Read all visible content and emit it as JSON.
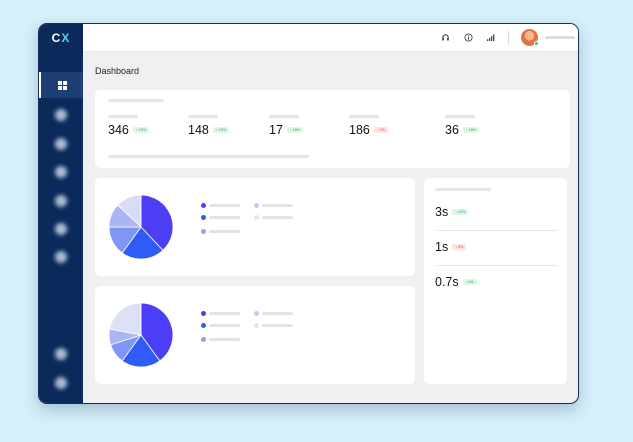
{
  "app": {
    "logo_left": "C",
    "logo_right": "X"
  },
  "header": {
    "icons": [
      "headset-icon",
      "info-icon",
      "signal-icon"
    ],
    "user": {
      "avatar": "user-avatar",
      "status_color": "#2fcf6a"
    }
  },
  "page": {
    "title": "Dashboard"
  },
  "stats": [
    {
      "value": "346",
      "change": "↑ 15%",
      "trend": "up"
    },
    {
      "value": "148",
      "change": "↑ 15%",
      "trend": "up"
    },
    {
      "value": "17",
      "change": "↑ 15%",
      "trend": "up"
    },
    {
      "value": "186",
      "change": "↓ 7%",
      "trend": "down"
    },
    {
      "value": "36",
      "change": "↑ 15%",
      "trend": "up"
    }
  ],
  "metrics": [
    {
      "value": "3s",
      "change": "↑ 12%",
      "trend": "up"
    },
    {
      "value": "1s",
      "change": "↓ 9%",
      "trend": "down"
    },
    {
      "value": "0.7s",
      "change": "↑ 6%",
      "trend": "up"
    }
  ],
  "charts": [
    {
      "slices": [
        {
          "value": 38,
          "color": "#4c3ef4"
        },
        {
          "value": 22,
          "color": "#2f5cf6"
        },
        {
          "value": 15,
          "color": "#7f97f2"
        },
        {
          "value": 12,
          "color": "#aab5f4"
        },
        {
          "value": 13,
          "color": "#d8dcf7"
        }
      ],
      "legend_colors": [
        "#4c3ef4",
        "#2f5cf6",
        "#8ea1f2",
        "#c3c9f4",
        "#e3e5f7"
      ]
    },
    {
      "slices": [
        {
          "value": 40,
          "color": "#4c3ef4"
        },
        {
          "value": 20,
          "color": "#2f5cf6"
        },
        {
          "value": 10,
          "color": "#7f97f2"
        },
        {
          "value": 8,
          "color": "#aab5f4"
        },
        {
          "value": 22,
          "color": "#dde0f7"
        }
      ],
      "legend_colors": [
        "#4c3ef4",
        "#2f5cf6",
        "#8ea1f2",
        "#c3c9f4",
        "#e3e5f7"
      ]
    }
  ],
  "colors": {
    "sidebar": "#0b2a5b",
    "accent": "#4c3ef4",
    "background": "#d6f1fb"
  }
}
